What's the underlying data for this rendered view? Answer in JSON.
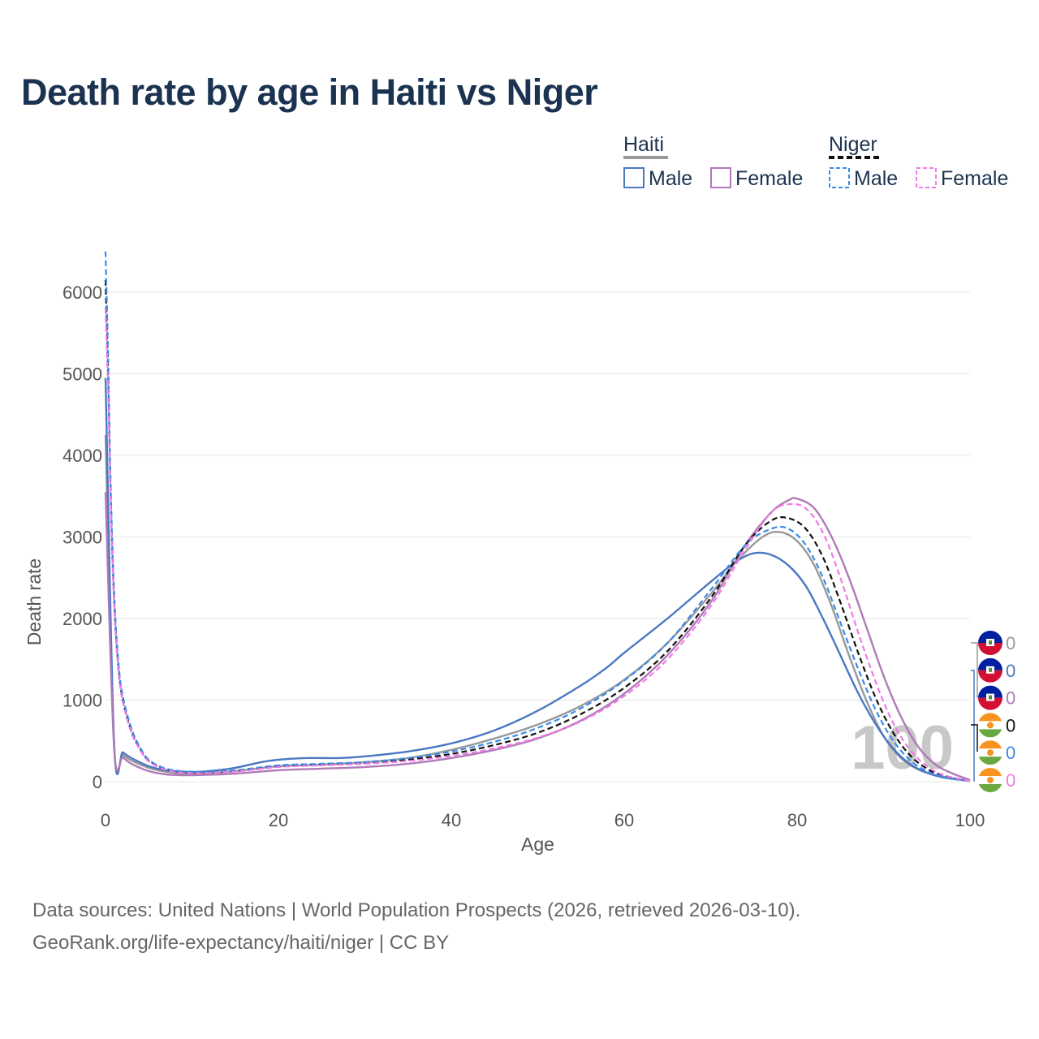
{
  "title": "Death rate by age in Haiti vs Niger",
  "source_line1": "Data sources: United Nations | World Population Prospects (2026, retrieved 2026-03-10).",
  "source_line2": "GeoRank.org/life-expectancy/haiti/niger | CC BY",
  "year_watermark": "100",
  "legend": {
    "groups": [
      {
        "country": "Haiti",
        "entries": [
          {
            "label": "Male",
            "color": "#4a78c2",
            "dashed": false
          },
          {
            "label": "Female",
            "color": "#b07ab8",
            "dashed": false
          }
        ],
        "head_color": "#999999",
        "head_dashed": false
      },
      {
        "country": "Niger",
        "entries": [
          {
            "label": "Male",
            "color": "#3b8be8",
            "dashed": true
          },
          {
            "label": "Female",
            "color": "#f07ae6",
            "dashed": true
          }
        ],
        "head_color": "#111111",
        "head_dashed": true
      }
    ]
  },
  "end_labels": [
    {
      "flag": "haiti",
      "text": "0",
      "color": "#999999"
    },
    {
      "flag": "haiti",
      "text": "0",
      "color": "#4a78c2"
    },
    {
      "flag": "haiti",
      "text": "0",
      "color": "#b07ab8"
    },
    {
      "flag": "niger",
      "text": "0",
      "color": "#111111"
    },
    {
      "flag": "niger",
      "text": "0",
      "color": "#3b8be8"
    },
    {
      "flag": "niger",
      "text": "0",
      "color": "#f07ae6"
    }
  ],
  "chart_data": {
    "type": "line",
    "title": "Death rate by age in Haiti vs Niger",
    "xlabel": "Age",
    "ylabel": "Death rate",
    "xlim": [
      0,
      100
    ],
    "ylim": [
      0,
      6000
    ],
    "xticks": [
      0,
      20,
      40,
      60,
      80,
      100
    ],
    "yticks": [
      0,
      1000,
      2000,
      3000,
      4000,
      5000,
      6000
    ],
    "grid": true,
    "series": [
      {
        "name": "Haiti Total",
        "color": "#999999",
        "dashed": false,
        "x": [
          0,
          1,
          2,
          3,
          5,
          7,
          10,
          15,
          20,
          25,
          30,
          35,
          40,
          45,
          50,
          55,
          60,
          65,
          70,
          73,
          76,
          78,
          80,
          82,
          84,
          86,
          88,
          90,
          92,
          94,
          96,
          98,
          100
        ],
        "y": [
          4250,
          420,
          330,
          260,
          170,
          120,
          100,
          130,
          190,
          210,
          240,
          290,
          390,
          530,
          700,
          930,
          1250,
          1700,
          2300,
          2700,
          3000,
          3060,
          2950,
          2650,
          2150,
          1550,
          1000,
          560,
          290,
          150,
          80,
          40,
          10
        ]
      },
      {
        "name": "Haiti Male",
        "color": "#4a78c2",
        "dashed": false,
        "x": [
          0,
          1,
          2,
          3,
          5,
          7,
          10,
          12,
          15,
          18,
          20,
          23,
          27,
          30,
          35,
          40,
          45,
          50,
          55,
          58,
          60,
          65,
          70,
          73,
          75,
          77,
          79,
          81,
          83,
          85,
          87,
          89,
          91,
          93,
          95,
          97,
          100
        ],
        "y": [
          4950,
          450,
          360,
          290,
          190,
          140,
          120,
          130,
          170,
          240,
          270,
          290,
          290,
          310,
          370,
          470,
          630,
          870,
          1180,
          1400,
          1580,
          2000,
          2450,
          2700,
          2800,
          2780,
          2650,
          2400,
          2000,
          1550,
          1100,
          720,
          420,
          220,
          110,
          50,
          10
        ]
      },
      {
        "name": "Haiti Female",
        "color": "#b07ab8",
        "dashed": false,
        "x": [
          0,
          1,
          2,
          3,
          5,
          7,
          10,
          15,
          20,
          25,
          30,
          35,
          40,
          45,
          50,
          55,
          60,
          65,
          70,
          74,
          77,
          79,
          80,
          82,
          84,
          86,
          88,
          90,
          92,
          94,
          96,
          98,
          100
        ],
        "y": [
          3550,
          400,
          300,
          220,
          130,
          90,
          80,
          100,
          140,
          160,
          180,
          220,
          290,
          390,
          530,
          750,
          1080,
          1550,
          2200,
          2900,
          3300,
          3450,
          3470,
          3350,
          3000,
          2500,
          1900,
          1300,
          800,
          430,
          210,
          100,
          20
        ]
      },
      {
        "name": "Niger Total",
        "color": "#111111",
        "dashed": true,
        "x": [
          0,
          0.3,
          0.6,
          1,
          1.5,
          2,
          3,
          4,
          5,
          7,
          10,
          15,
          20,
          25,
          30,
          35,
          40,
          45,
          50,
          55,
          60,
          65,
          70,
          74,
          77,
          79,
          81,
          83,
          85,
          87,
          89,
          91,
          93,
          95,
          97,
          100
        ],
        "y": [
          6150,
          5000,
          3500,
          2200,
          1400,
          1000,
          620,
          400,
          260,
          150,
          110,
          130,
          190,
          210,
          230,
          270,
          340,
          450,
          600,
          830,
          1150,
          1600,
          2250,
          2900,
          3200,
          3230,
          3100,
          2750,
          2200,
          1600,
          1050,
          620,
          330,
          160,
          70,
          10
        ]
      },
      {
        "name": "Niger Male",
        "color": "#3b8be8",
        "dashed": true,
        "x": [
          0,
          0.3,
          0.6,
          1,
          1.5,
          2,
          3,
          4,
          5,
          7,
          10,
          15,
          20,
          25,
          30,
          35,
          40,
          45,
          50,
          55,
          60,
          65,
          70,
          74,
          77,
          79,
          81,
          83,
          85,
          87,
          89,
          91,
          93,
          95,
          97,
          100
        ],
        "y": [
          6500,
          5200,
          3600,
          2300,
          1450,
          1050,
          650,
          420,
          270,
          160,
          120,
          140,
          200,
          220,
          240,
          290,
          370,
          490,
          660,
          900,
          1240,
          1700,
          2350,
          2900,
          3100,
          3100,
          2900,
          2500,
          1950,
          1400,
          900,
          520,
          270,
          130,
          60,
          10
        ]
      },
      {
        "name": "Niger Female",
        "color": "#f07ae6",
        "dashed": true,
        "x": [
          0,
          0.3,
          0.6,
          1,
          1.5,
          2,
          3,
          4,
          5,
          7,
          10,
          15,
          20,
          25,
          30,
          35,
          40,
          45,
          50,
          55,
          60,
          65,
          70,
          74,
          77,
          79,
          81,
          83,
          85,
          87,
          89,
          91,
          93,
          95,
          97,
          100
        ],
        "y": [
          5800,
          4800,
          3400,
          2150,
          1350,
          980,
          600,
          390,
          250,
          145,
          105,
          125,
          180,
          200,
          220,
          255,
          315,
          410,
          540,
          740,
          1050,
          1500,
          2150,
          2850,
          3300,
          3400,
          3350,
          3050,
          2500,
          1850,
          1250,
          740,
          400,
          190,
          80,
          10
        ]
      }
    ]
  }
}
